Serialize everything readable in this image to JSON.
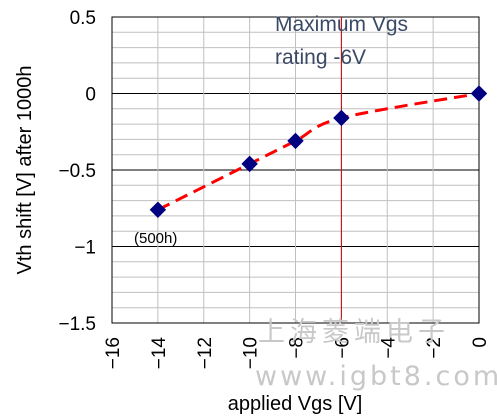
{
  "chart_data": {
    "type": "line",
    "xlabel": "applied Vgs [V]",
    "ylabel": "Vth shift [V] after 1000h",
    "xlim": [
      -16,
      0
    ],
    "ylim": [
      -1.5,
      0.5
    ],
    "x_ticks": [
      "-16",
      "-14",
      "-12",
      "-10",
      "-8",
      "-6",
      "-4",
      "-2",
      "0"
    ],
    "y_ticks": [
      "0.5",
      "0",
      "-0.5",
      "-1",
      "-1.5"
    ],
    "series": [
      {
        "x": [
          -14,
          -10,
          -8,
          -6,
          0
        ],
        "y": [
          -0.76,
          -0.46,
          -0.31,
          -0.16,
          0.0
        ],
        "marker": "diamond",
        "marker_color": "#000080",
        "line_color": "#ff0000",
        "line_style": "dashed"
      }
    ],
    "vertical_line": {
      "x": -6,
      "color": "#c00000"
    },
    "annotations": {
      "rating_line1": "Maximum Vgs",
      "rating_line2": "rating -6V",
      "point_note": "(500h)"
    },
    "grid": true,
    "watermark_line1": "上海菱端电子",
    "watermark_line2": "www.igbt8.com"
  }
}
